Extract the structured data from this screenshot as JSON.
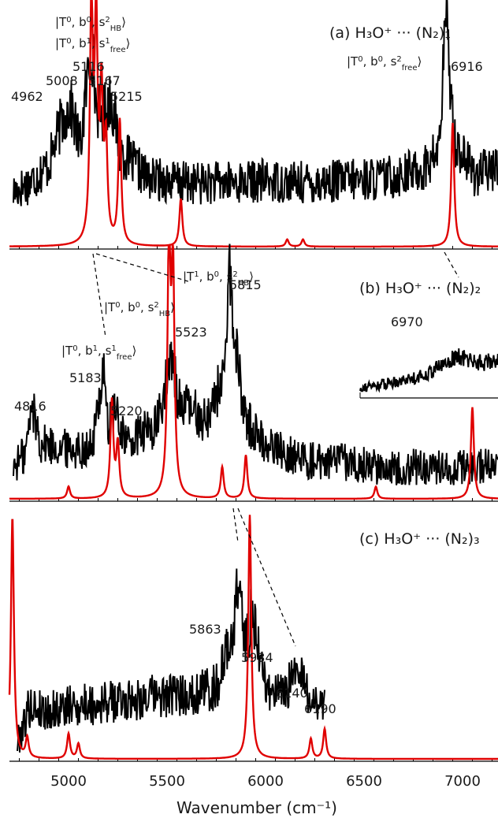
{
  "chart_data": [
    {
      "type": "line",
      "panel": "a",
      "title": "(a) H₃O⁺ ··· (N₂)₁",
      "xlim": [
        4700,
        7180
      ],
      "series": [
        {
          "role": "experiment",
          "color": "#000000",
          "points": [
            [
              4720,
              0.22
            ],
            [
              4800,
              0.26
            ],
            [
              4900,
              0.34
            ],
            [
              4962,
              0.52
            ],
            [
              5008,
              0.6
            ],
            [
              5060,
              0.42
            ],
            [
              5116,
              0.88
            ],
            [
              5140,
              0.6
            ],
            [
              5167,
              0.55
            ],
            [
              5215,
              0.64
            ],
            [
              5260,
              0.4
            ],
            [
              5400,
              0.28
            ],
            [
              5600,
              0.26
            ],
            [
              5800,
              0.26
            ],
            [
              6000,
              0.27
            ],
            [
              6200,
              0.26
            ],
            [
              6400,
              0.27
            ],
            [
              6600,
              0.28
            ],
            [
              6800,
              0.32
            ],
            [
              6880,
              0.4
            ],
            [
              6916,
              0.98
            ],
            [
              6960,
              0.44
            ],
            [
              7060,
              0.3
            ],
            [
              7180,
              0.32
            ]
          ]
        },
        {
          "role": "theory",
          "color": "#e00000",
          "peaks": [
            [
              5116,
              0.98
            ],
            [
              5140,
              0.9
            ],
            [
              5167,
              0.6
            ],
            [
              5190,
              0.4
            ],
            [
              5260,
              0.52
            ],
            [
              5570,
              0.2
            ],
            [
              6950,
              0.52
            ],
            [
              6110,
              0.03
            ],
            [
              6190,
              0.03
            ]
          ]
        }
      ],
      "peak_labels": [
        {
          "x": 4962,
          "text": "4962"
        },
        {
          "x": 5008,
          "text": "5008"
        },
        {
          "x": 5116,
          "text": "5116"
        },
        {
          "x": 5167,
          "text": "5167"
        },
        {
          "x": 5215,
          "text": "5215"
        },
        {
          "x": 6916,
          "text": "6916"
        }
      ],
      "assignments": [
        {
          "T": "0",
          "b": "0",
          "s": "2",
          "sub": "HB"
        },
        {
          "T": "0",
          "b": "1",
          "s": "1",
          "sub": "free"
        },
        {
          "T": "0",
          "b": "0",
          "s": "2",
          "sub": "free"
        }
      ]
    },
    {
      "type": "line",
      "panel": "b",
      "title": "(b) H₃O⁺ ··· (N₂)₂",
      "xlim": [
        4700,
        7180
      ],
      "series": [
        {
          "role": "experiment",
          "color": "#000000",
          "points": [
            [
              4720,
              0.12
            ],
            [
              4780,
              0.18
            ],
            [
              4816,
              0.38
            ],
            [
              4860,
              0.22
            ],
            [
              5000,
              0.2
            ],
            [
              5120,
              0.2
            ],
            [
              5183,
              0.58
            ],
            [
              5200,
              0.24
            ],
            [
              5220,
              0.38
            ],
            [
              5300,
              0.22
            ],
            [
              5450,
              0.3
            ],
            [
              5523,
              0.58
            ],
            [
              5560,
              0.4
            ],
            [
              5700,
              0.32
            ],
            [
              5800,
              0.55
            ],
            [
              5815,
              1.0
            ],
            [
              5840,
              0.68
            ],
            [
              5900,
              0.32
            ],
            [
              6000,
              0.22
            ],
            [
              6200,
              0.15
            ],
            [
              6400,
              0.14
            ],
            [
              6600,
              0.12
            ],
            [
              6800,
              0.12
            ],
            [
              7000,
              0.12
            ],
            [
              7180,
              0.12
            ]
          ]
        },
        {
          "role": "theory",
          "color": "#e00000",
          "peaks": [
            [
              5220,
              0.4
            ],
            [
              5250,
              0.22
            ],
            [
              5510,
              1.05
            ],
            [
              5530,
              0.92
            ],
            [
              5780,
              0.13
            ],
            [
              5900,
              0.18
            ],
            [
              7050,
              0.38
            ],
            [
              5000,
              0.05
            ],
            [
              6560,
              0.05
            ]
          ]
        },
        {
          "role": "experiment-inset",
          "color": "#000000",
          "points": [
            [
              6480,
              0.05
            ],
            [
              6600,
              0.12
            ],
            [
              6800,
              0.25
            ],
            [
              6970,
              0.55
            ],
            [
              7100,
              0.45
            ],
            [
              7180,
              0.5
            ]
          ]
        }
      ],
      "peak_labels": [
        {
          "x": 4816,
          "text": "4816"
        },
        {
          "x": 5183,
          "text": "5183"
        },
        {
          "x": 5220,
          "text": "5220"
        },
        {
          "x": 5523,
          "text": "5523"
        },
        {
          "x": 5815,
          "text": "5815"
        },
        {
          "x": 6970,
          "text": "6970"
        }
      ],
      "assignments": [
        {
          "T": "1",
          "b": "0",
          "s": "2",
          "sub": "HB"
        },
        {
          "T": "0",
          "b": "0",
          "s": "2",
          "sub": "HB"
        },
        {
          "T": "0",
          "b": "1",
          "s": "1",
          "sub": "free"
        }
      ]
    },
    {
      "type": "line",
      "panel": "c",
      "title": "(c) H₃O⁺ ··· (N₂)₃",
      "xlim": [
        4700,
        7180
      ],
      "xticks": [
        5000,
        5500,
        6000,
        6500,
        7000
      ],
      "xlabel": "Wavenumber (cm⁻¹)",
      "series": [
        {
          "role": "experiment",
          "color": "#000000",
          "points": [
            [
              4740,
              0.05
            ],
            [
              4800,
              0.2
            ],
            [
              4900,
              0.18
            ],
            [
              5000,
              0.2
            ],
            [
              5200,
              0.22
            ],
            [
              5400,
              0.24
            ],
            [
              5600,
              0.25
            ],
            [
              5750,
              0.28
            ],
            [
              5830,
              0.5
            ],
            [
              5863,
              0.72
            ],
            [
              5900,
              0.45
            ],
            [
              5934,
              0.6
            ],
            [
              6000,
              0.28
            ],
            [
              6100,
              0.24
            ],
            [
              6140,
              0.35
            ],
            [
              6190,
              0.3
            ],
            [
              6250,
              0.22
            ],
            [
              6300,
              0.2
            ]
          ]
        },
        {
          "role": "theory",
          "color": "#e00000",
          "peaks": [
            [
              4715,
              0.97
            ],
            [
              4790,
              0.08
            ],
            [
              5000,
              0.1
            ],
            [
              5050,
              0.06
            ],
            [
              5920,
              0.98
            ],
            [
              6230,
              0.08
            ],
            [
              6300,
              0.12
            ]
          ]
        }
      ],
      "peak_labels": [
        {
          "x": 5863,
          "text": "5863"
        },
        {
          "x": 5934,
          "text": "5934"
        },
        {
          "x": 6140,
          "text": "6140"
        },
        {
          "x": 6190,
          "text": "6190"
        }
      ]
    }
  ]
}
